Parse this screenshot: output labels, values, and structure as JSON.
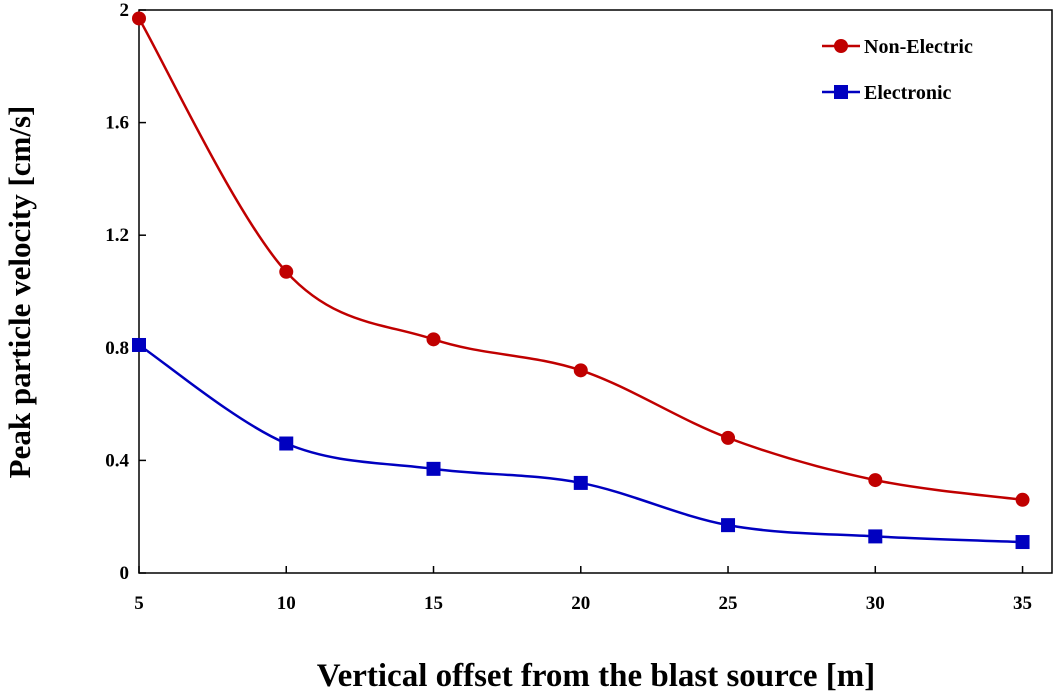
{
  "chart_data": {
    "type": "line",
    "title": "",
    "xlabel": "Vertical offset from the blast source [m]",
    "ylabel": "Peak particle velocity [cm/s]",
    "x": [
      5,
      10,
      15,
      20,
      25,
      30,
      35
    ],
    "xlim": [
      5,
      36
    ],
    "ylim": [
      0,
      2
    ],
    "xticks": [
      "5",
      "10",
      "15",
      "20",
      "25",
      "30",
      "35"
    ],
    "yticks": [
      "0",
      "0.4",
      "0.8",
      "1.2",
      "1.6",
      "2"
    ],
    "grid": false,
    "legend_position": "top-right",
    "series": [
      {
        "name": "Non-Electric",
        "color": "#c00000",
        "marker": "circle",
        "smooth": true,
        "values": [
          1.97,
          1.07,
          0.83,
          0.72,
          0.48,
          0.33,
          0.26
        ]
      },
      {
        "name": "Electronic",
        "color": "#0000c0",
        "marker": "square",
        "smooth": true,
        "values": [
          0.81,
          0.46,
          0.37,
          0.32,
          0.17,
          0.13,
          0.11
        ]
      }
    ]
  }
}
